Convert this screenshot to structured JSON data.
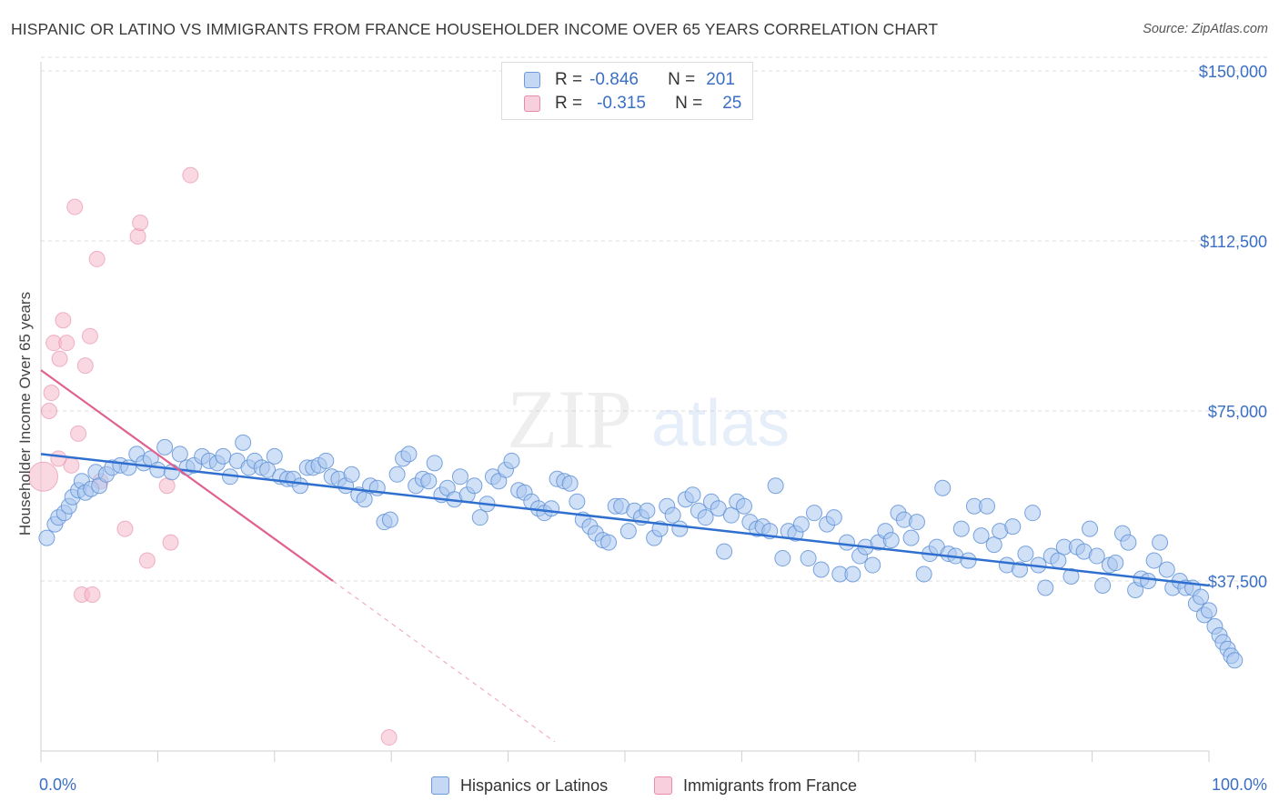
{
  "header": {
    "title": "HISPANIC OR LATINO VS IMMIGRANTS FROM FRANCE HOUSEHOLDER INCOME OVER 65 YEARS CORRELATION CHART",
    "source": "Source: ZipAtlas.com"
  },
  "watermark": {
    "zip": "ZIP",
    "atlas": "atlas"
  },
  "legend_top": [
    {
      "r_label": "R =",
      "r_value": "-0.846",
      "n_label": "N =",
      "n_value": "201"
    },
    {
      "r_label": "R =",
      "r_value": "-0.315",
      "n_label": "N =",
      "n_value": "25"
    }
  ],
  "chart_data": {
    "type": "scatter",
    "title": "HISPANIC OR LATINO VS IMMIGRANTS FROM FRANCE HOUSEHOLDER INCOME OVER 65 YEARS CORRELATION CHART",
    "xlabel": "",
    "ylabel": "Householder Income Over 65 years",
    "xlim": [
      0,
      100
    ],
    "ylim": [
      0,
      153000
    ],
    "x_tick_labels": [
      "0.0%",
      "100.0%"
    ],
    "y_ticks": [
      37500,
      75000,
      112500,
      150000
    ],
    "y_tick_labels": [
      "$37,500",
      "$75,000",
      "$112,500",
      "$150,000"
    ],
    "grid": true,
    "legend_position": "bottom",
    "colors": {
      "blue": "#5b8fd6",
      "blue_fill": "#a9c6ee",
      "pink": "#e57ea0",
      "pink_fill": "#f4b8cb",
      "blue_line": "#2f6fcf",
      "pink_line": "#e0608f"
    },
    "series": [
      {
        "name": "Hispanics or Latinos",
        "color": "#5b8fd6",
        "trend": {
          "x": [
            0,
            100
          ],
          "y": [
            65500,
            36500
          ]
        },
        "points": [
          [
            0.5,
            47000
          ],
          [
            1.2,
            50000
          ],
          [
            1.5,
            51500
          ],
          [
            2.0,
            52500
          ],
          [
            2.4,
            54000
          ],
          [
            2.7,
            56000
          ],
          [
            3.2,
            57500
          ],
          [
            3.5,
            59500
          ],
          [
            3.8,
            57000
          ],
          [
            4.3,
            57800
          ],
          [
            4.7,
            61500
          ],
          [
            5.0,
            58500
          ],
          [
            5.6,
            61000
          ],
          [
            6.1,
            62500
          ],
          [
            6.8,
            63000
          ],
          [
            7.5,
            62500
          ],
          [
            8.2,
            65500
          ],
          [
            8.8,
            63500
          ],
          [
            9.4,
            64500
          ],
          [
            10.0,
            62000
          ],
          [
            10.6,
            67000
          ],
          [
            11.2,
            61500
          ],
          [
            11.9,
            65500
          ],
          [
            12.5,
            62500
          ],
          [
            13.1,
            63000
          ],
          [
            13.8,
            65000
          ],
          [
            14.4,
            64000
          ],
          [
            15.1,
            63500
          ],
          [
            15.6,
            65000
          ],
          [
            16.2,
            60500
          ],
          [
            16.8,
            64000
          ],
          [
            17.3,
            68000
          ],
          [
            17.8,
            62500
          ],
          [
            18.3,
            64000
          ],
          [
            18.9,
            62500
          ],
          [
            19.4,
            62000
          ],
          [
            20.0,
            65000
          ],
          [
            20.5,
            60500
          ],
          [
            21.1,
            60000
          ],
          [
            21.6,
            60000
          ],
          [
            22.2,
            58500
          ],
          [
            22.8,
            62500
          ],
          [
            23.3,
            62500
          ],
          [
            23.8,
            63000
          ],
          [
            24.4,
            64000
          ],
          [
            24.9,
            60500
          ],
          [
            25.5,
            60000
          ],
          [
            26.1,
            58500
          ],
          [
            26.6,
            61000
          ],
          [
            27.2,
            56500
          ],
          [
            27.7,
            55500
          ],
          [
            28.2,
            58500
          ],
          [
            28.8,
            58000
          ],
          [
            29.4,
            50500
          ],
          [
            29.9,
            51000
          ],
          [
            30.5,
            61000
          ],
          [
            31.0,
            64500
          ],
          [
            31.5,
            65500
          ],
          [
            32.1,
            58500
          ],
          [
            32.7,
            60000
          ],
          [
            33.2,
            59500
          ],
          [
            33.7,
            63500
          ],
          [
            34.3,
            56500
          ],
          [
            34.8,
            58000
          ],
          [
            35.4,
            55500
          ],
          [
            35.9,
            60500
          ],
          [
            36.5,
            56500
          ],
          [
            37.1,
            58500
          ],
          [
            37.6,
            51500
          ],
          [
            38.2,
            54500
          ],
          [
            38.7,
            60500
          ],
          [
            39.2,
            59500
          ],
          [
            39.8,
            62000
          ],
          [
            40.3,
            64000
          ],
          [
            40.9,
            57500
          ],
          [
            41.4,
            57000
          ],
          [
            42.0,
            55000
          ],
          [
            42.6,
            53500
          ],
          [
            43.1,
            52500
          ],
          [
            43.7,
            53500
          ],
          [
            44.2,
            60000
          ],
          [
            44.8,
            59500
          ],
          [
            45.3,
            59000
          ],
          [
            45.9,
            55000
          ],
          [
            46.4,
            51000
          ],
          [
            47.0,
            49500
          ],
          [
            47.5,
            48000
          ],
          [
            48.1,
            46500
          ],
          [
            48.6,
            46000
          ],
          [
            49.2,
            54000
          ],
          [
            49.7,
            54000
          ],
          [
            50.3,
            48500
          ],
          [
            50.8,
            53000
          ],
          [
            51.4,
            51500
          ],
          [
            51.9,
            53000
          ],
          [
            52.5,
            47000
          ],
          [
            53.0,
            49000
          ],
          [
            53.6,
            54000
          ],
          [
            54.1,
            52000
          ],
          [
            54.7,
            49000
          ],
          [
            55.2,
            55500
          ],
          [
            55.8,
            56500
          ],
          [
            56.3,
            53000
          ],
          [
            56.9,
            51500
          ],
          [
            57.4,
            55000
          ],
          [
            58.0,
            53500
          ],
          [
            58.5,
            44000
          ],
          [
            59.1,
            52000
          ],
          [
            59.6,
            55000
          ],
          [
            60.2,
            54000
          ],
          [
            60.7,
            50500
          ],
          [
            61.3,
            49000
          ],
          [
            61.8,
            49500
          ],
          [
            62.4,
            48500
          ],
          [
            62.9,
            58500
          ],
          [
            63.5,
            42500
          ],
          [
            64.0,
            48500
          ],
          [
            64.6,
            48000
          ],
          [
            65.1,
            50000
          ],
          [
            65.7,
            42500
          ],
          [
            66.2,
            52500
          ],
          [
            66.8,
            40000
          ],
          [
            67.3,
            50000
          ],
          [
            67.9,
            51500
          ],
          [
            68.4,
            39000
          ],
          [
            69.0,
            46000
          ],
          [
            69.5,
            39000
          ],
          [
            70.1,
            43000
          ],
          [
            70.6,
            45000
          ],
          [
            71.2,
            41000
          ],
          [
            71.7,
            46000
          ],
          [
            72.3,
            48500
          ],
          [
            72.8,
            46500
          ],
          [
            73.4,
            52500
          ],
          [
            73.9,
            51000
          ],
          [
            74.5,
            47000
          ],
          [
            75.0,
            50500
          ],
          [
            75.6,
            39000
          ],
          [
            76.1,
            43500
          ],
          [
            76.7,
            45000
          ],
          [
            77.2,
            58000
          ],
          [
            77.7,
            43500
          ],
          [
            78.3,
            43000
          ],
          [
            78.8,
            49000
          ],
          [
            79.4,
            42000
          ],
          [
            79.9,
            54000
          ],
          [
            80.5,
            47500
          ],
          [
            81.0,
            54000
          ],
          [
            81.6,
            45500
          ],
          [
            82.1,
            48500
          ],
          [
            82.7,
            41000
          ],
          [
            83.2,
            49500
          ],
          [
            83.8,
            40000
          ],
          [
            84.3,
            43500
          ],
          [
            84.9,
            52500
          ],
          [
            85.4,
            41000
          ],
          [
            86.0,
            36000
          ],
          [
            86.5,
            43000
          ],
          [
            87.1,
            42000
          ],
          [
            87.6,
            45000
          ],
          [
            88.2,
            38500
          ],
          [
            88.7,
            45000
          ],
          [
            89.3,
            44000
          ],
          [
            89.8,
            49000
          ],
          [
            90.4,
            43000
          ],
          [
            90.9,
            36500
          ],
          [
            91.5,
            41000
          ],
          [
            92.0,
            41500
          ],
          [
            92.6,
            48000
          ],
          [
            93.1,
            46000
          ],
          [
            93.7,
            35500
          ],
          [
            94.2,
            38000
          ],
          [
            94.8,
            37500
          ],
          [
            95.3,
            42000
          ],
          [
            95.8,
            46000
          ],
          [
            96.4,
            40000
          ],
          [
            96.9,
            36000
          ],
          [
            97.5,
            37500
          ],
          [
            98.0,
            36000
          ],
          [
            98.6,
            36000
          ],
          [
            98.9,
            32500
          ],
          [
            99.3,
            34000
          ],
          [
            99.6,
            30000
          ],
          [
            100.0,
            31000
          ],
          [
            100.5,
            27500
          ],
          [
            100.9,
            25500
          ],
          [
            101.2,
            24000
          ],
          [
            101.6,
            22500
          ],
          [
            101.9,
            21000
          ],
          [
            102.2,
            20000
          ]
        ]
      },
      {
        "name": "Immigrants from France",
        "color": "#e57ea0",
        "trend": {
          "x": [
            0,
            25
          ],
          "y": [
            84000,
            37500
          ]
        },
        "trend_extension": {
          "x": [
            25,
            44
          ],
          "y": [
            37500,
            2000
          ]
        },
        "points": [
          [
            0.2,
            60500
          ],
          [
            0.7,
            75000
          ],
          [
            0.9,
            79000
          ],
          [
            1.1,
            90000
          ],
          [
            1.6,
            86500
          ],
          [
            1.9,
            95000
          ],
          [
            2.2,
            90000
          ],
          [
            2.6,
            63000
          ],
          [
            2.9,
            120000
          ],
          [
            3.2,
            70000
          ],
          [
            3.5,
            34500
          ],
          [
            3.8,
            85000
          ],
          [
            4.2,
            91500
          ],
          [
            4.4,
            34500
          ],
          [
            4.8,
            108500
          ],
          [
            5.1,
            59500
          ],
          [
            7.2,
            49000
          ],
          [
            8.3,
            113500
          ],
          [
            8.5,
            116500
          ],
          [
            9.1,
            42000
          ],
          [
            10.8,
            58500
          ],
          [
            11.1,
            46000
          ],
          [
            12.8,
            127000
          ],
          [
            29.8,
            3000
          ],
          [
            1.5,
            64500
          ]
        ]
      }
    ]
  },
  "bottom_legend": [
    {
      "label": "Hispanics or Latinos"
    },
    {
      "label": "Immigrants from France"
    }
  ]
}
